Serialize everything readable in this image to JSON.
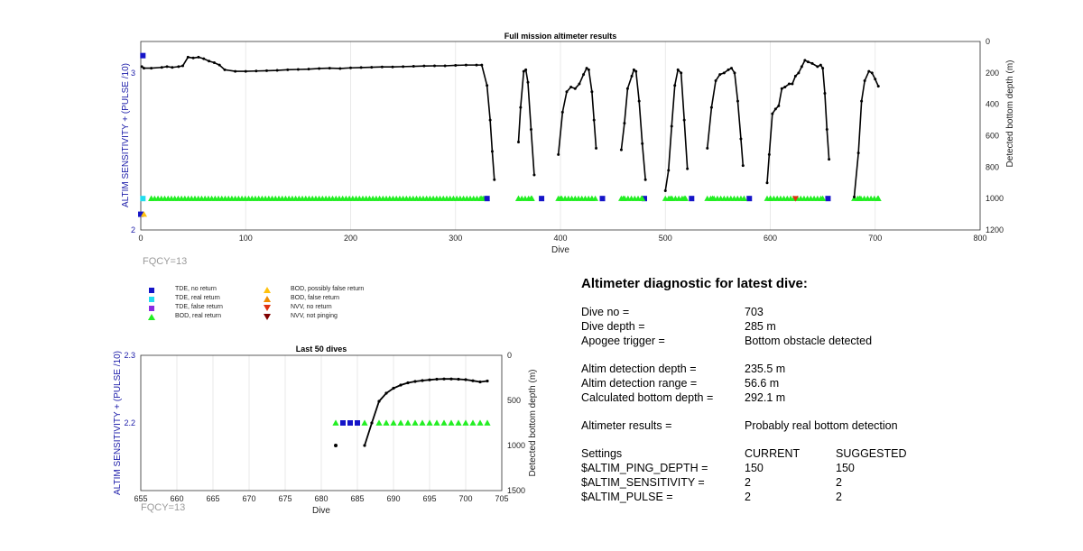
{
  "colors": {
    "tde_no_return": "#1515c8",
    "tde_real_return": "#22ddee",
    "tde_false_return": "#8a2be2",
    "bod_real_return": "#22ee22",
    "bod_possibly_false": "#ffc20e",
    "bod_false_return": "#f08c00",
    "nvv_no_return": "#e03010",
    "nvv_not_pinging": "#800000",
    "axis_left": "#1a1aa8"
  },
  "fqcy_top": "FQCY=13",
  "fqcy_bottom": "FQCY=13",
  "legend": [
    {
      "label": "TDE, no return",
      "shape": "square",
      "color_key": "tde_no_return"
    },
    {
      "label": "TDE, real return",
      "shape": "square",
      "color_key": "tde_real_return"
    },
    {
      "label": "TDE, false return",
      "shape": "square",
      "color_key": "tde_false_return"
    },
    {
      "label": "BOD, real return",
      "shape": "triangle-up",
      "color_key": "bod_real_return"
    },
    {
      "label": "BOD, possibly false return",
      "shape": "triangle-up",
      "color_key": "bod_possibly_false"
    },
    {
      "label": "BOD, false return",
      "shape": "triangle-up",
      "color_key": "bod_false_return"
    },
    {
      "label": "NVV, no return",
      "shape": "triangle-down",
      "color_key": "nvv_no_return"
    },
    {
      "label": "NVV, not pinging",
      "shape": "triangle-down",
      "color_key": "nvv_not_pinging"
    }
  ],
  "diagnostic": {
    "title": "Altimeter diagnostic for latest dive:",
    "dive_no_label": "Dive no =",
    "dive_no": "703",
    "dive_depth_label": "Dive depth =",
    "dive_depth": "285 m",
    "apogee_label": "Apogee trigger =",
    "apogee": "Bottom obstacle detected",
    "detect_depth_label": "Altim detection depth =",
    "detect_depth": "235.5 m",
    "detect_range_label": "Altim detection range =",
    "detect_range": "56.6 m",
    "calc_bottom_label": "Calculated bottom depth =",
    "calc_bottom": "292.1 m",
    "results_label": "Altimeter results =",
    "results": "Probably real bottom detection",
    "settings_label": "Settings",
    "current_label": "CURRENT",
    "suggested_label": "SUGGESTED",
    "settings": [
      {
        "name": "$ALTIM_PING_DEPTH =",
        "current": "150",
        "suggested": "150"
      },
      {
        "name": "$ALTIM_SENSITIVITY =",
        "current": "2",
        "suggested": "2"
      },
      {
        "name": "$ALTIM_PULSE =",
        "current": "2",
        "suggested": "2"
      }
    ]
  },
  "chart_data": [
    {
      "type": "line",
      "title": "Full mission altimeter results",
      "xlabel": "Dive",
      "ylabel": "ALTIM SENSITIVITY + (PULSE /10)",
      "ylabel_right": "Detected bottom depth (m)",
      "xlim": [
        0,
        800
      ],
      "xticks": [
        0,
        100,
        200,
        300,
        400,
        500,
        600,
        700,
        800
      ],
      "ylim_left": [
        2,
        3.2
      ],
      "yticks_left": [
        2,
        3
      ],
      "ylim_right": [
        1200,
        0
      ],
      "yticks_right": [
        0,
        200,
        400,
        600,
        800,
        1000,
        1200
      ],
      "grid": true,
      "depth_line": [
        [
          1,
          160
        ],
        [
          3,
          170
        ],
        [
          10,
          170
        ],
        [
          20,
          165
        ],
        [
          25,
          160
        ],
        [
          30,
          165
        ],
        [
          36,
          160
        ],
        [
          40,
          155
        ],
        [
          45,
          100
        ],
        [
          50,
          105
        ],
        [
          55,
          100
        ],
        [
          60,
          110
        ],
        [
          65,
          125
        ],
        [
          70,
          135
        ],
        [
          75,
          150
        ],
        [
          80,
          180
        ],
        [
          90,
          190
        ],
        [
          100,
          190
        ],
        [
          110,
          188
        ],
        [
          120,
          186
        ],
        [
          130,
          184
        ],
        [
          140,
          180
        ],
        [
          150,
          178
        ],
        [
          160,
          176
        ],
        [
          170,
          172
        ],
        [
          180,
          170
        ],
        [
          190,
          172
        ],
        [
          200,
          168
        ],
        [
          210,
          166
        ],
        [
          220,
          164
        ],
        [
          230,
          162
        ],
        [
          240,
          162
        ],
        [
          250,
          160
        ],
        [
          260,
          158
        ],
        [
          270,
          156
        ],
        [
          280,
          155
        ],
        [
          290,
          155
        ],
        [
          300,
          152
        ],
        [
          310,
          150
        ],
        [
          320,
          150
        ],
        [
          325,
          150
        ],
        [
          330,
          280
        ],
        [
          333,
          500
        ],
        [
          335,
          700
        ],
        [
          337,
          880
        ],
        [
          360,
          640
        ],
        [
          362,
          420
        ],
        [
          365,
          190
        ],
        [
          367,
          180
        ],
        [
          369,
          260
        ],
        [
          372,
          560
        ],
        [
          375,
          850
        ],
        [
          398,
          720
        ],
        [
          402,
          450
        ],
        [
          406,
          320
        ],
        [
          410,
          290
        ],
        [
          414,
          300
        ],
        [
          418,
          270
        ],
        [
          422,
          210
        ],
        [
          425,
          170
        ],
        [
          427,
          180
        ],
        [
          430,
          320
        ],
        [
          432,
          500
        ],
        [
          434,
          680
        ],
        [
          458,
          690
        ],
        [
          461,
          520
        ],
        [
          464,
          300
        ],
        [
          468,
          220
        ],
        [
          470,
          180
        ],
        [
          472,
          190
        ],
        [
          475,
          380
        ],
        [
          478,
          650
        ],
        [
          481,
          880
        ],
        [
          500,
          950
        ],
        [
          503,
          820
        ],
        [
          506,
          540
        ],
        [
          509,
          280
        ],
        [
          512,
          180
        ],
        [
          515,
          200
        ],
        [
          518,
          500
        ],
        [
          521,
          810
        ],
        [
          540,
          680
        ],
        [
          544,
          420
        ],
        [
          548,
          250
        ],
        [
          552,
          210
        ],
        [
          556,
          200
        ],
        [
          560,
          180
        ],
        [
          563,
          170
        ],
        [
          566,
          200
        ],
        [
          569,
          380
        ],
        [
          572,
          620
        ],
        [
          574,
          790
        ],
        [
          597,
          900
        ],
        [
          599,
          720
        ],
        [
          602,
          460
        ],
        [
          605,
          430
        ],
        [
          608,
          410
        ],
        [
          611,
          300
        ],
        [
          614,
          290
        ],
        [
          618,
          270
        ],
        [
          621,
          270
        ],
        [
          624,
          220
        ],
        [
          627,
          200
        ],
        [
          630,
          160
        ],
        [
          633,
          120
        ],
        [
          636,
          130
        ],
        [
          640,
          140
        ],
        [
          645,
          160
        ],
        [
          648,
          150
        ],
        [
          650,
          170
        ],
        [
          652,
          330
        ],
        [
          654,
          560
        ],
        [
          656,
          750
        ],
        [
          680,
          990
        ],
        [
          684,
          710
        ],
        [
          687,
          380
        ],
        [
          690,
          250
        ],
        [
          694,
          190
        ],
        [
          697,
          200
        ],
        [
          700,
          240
        ],
        [
          703,
          285
        ]
      ],
      "markers": {
        "tde_no_return": [
          [
            2,
            3.11
          ],
          [
            0,
            2.1
          ],
          [
            330,
            2.2
          ],
          [
            382,
            2.2
          ],
          [
            440,
            2.2
          ],
          [
            480,
            2.2
          ],
          [
            525,
            2.2
          ],
          [
            580,
            2.2
          ],
          [
            655,
            2.2
          ]
        ],
        "tde_real_return": [
          [
            2,
            2.2
          ]
        ],
        "bod_possibly_false": [
          [
            3,
            2.1
          ]
        ],
        "bod_real_return": [
          [
            10,
            2.2
          ],
          [
            325,
            2.2
          ],
          [
            360,
            2.2
          ],
          [
            372,
            2.2
          ],
          [
            400,
            2.2
          ],
          [
            430,
            2.2
          ],
          [
            460,
            2.2
          ],
          [
            478,
            2.2
          ],
          [
            505,
            2.2
          ],
          [
            518,
            2.2
          ],
          [
            545,
            2.2
          ],
          [
            575,
            2.2
          ],
          [
            600,
            2.2
          ],
          [
            650,
            2.2
          ],
          [
            685,
            2.2
          ],
          [
            703,
            2.2
          ]
        ],
        "nvv_no_return": [
          [
            624,
            2.2
          ]
        ]
      },
      "bod_bands": [
        [
          10,
          330
        ],
        [
          360,
          375
        ],
        [
          398,
          435
        ],
        [
          458,
          480
        ],
        [
          500,
          520
        ],
        [
          540,
          575
        ],
        [
          597,
          650
        ],
        [
          680,
          703
        ]
      ]
    },
    {
      "type": "line",
      "title": "Last 50 dives",
      "xlabel": "Dive",
      "ylabel": "ALTIM SENSITIVITY + (PULSE /10)",
      "ylabel_right": "Detected bottom depth (m)",
      "xlim": [
        655,
        705
      ],
      "xticks": [
        655,
        660,
        665,
        670,
        675,
        680,
        685,
        690,
        695,
        700,
        705
      ],
      "ylim_left": [
        2.1,
        2.3
      ],
      "yticks_left": [
        2.2,
        2.3
      ],
      "ylim_right": [
        1500,
        0
      ],
      "yticks_right": [
        0,
        500,
        1000,
        1500
      ],
      "grid": true,
      "depth_line": [
        [
          686,
          1000
        ],
        [
          687,
          750
        ],
        [
          688,
          510
        ],
        [
          689,
          420
        ],
        [
          690,
          365
        ],
        [
          691,
          330
        ],
        [
          692,
          305
        ],
        [
          693,
          290
        ],
        [
          694,
          280
        ],
        [
          695,
          272
        ],
        [
          696,
          265
        ],
        [
          697,
          262
        ],
        [
          698,
          262
        ],
        [
          699,
          265
        ],
        [
          700,
          270
        ],
        [
          701,
          282
        ],
        [
          702,
          295
        ],
        [
          703,
          285
        ]
      ],
      "isolated_point": [
        682,
        1000
      ],
      "tde_no_return": [
        683,
        684,
        685
      ],
      "bod_real_return": [
        682,
        686,
        688,
        689,
        690,
        691,
        692,
        693,
        694,
        695,
        696,
        697,
        698,
        699,
        700,
        701,
        702,
        703
      ]
    }
  ]
}
